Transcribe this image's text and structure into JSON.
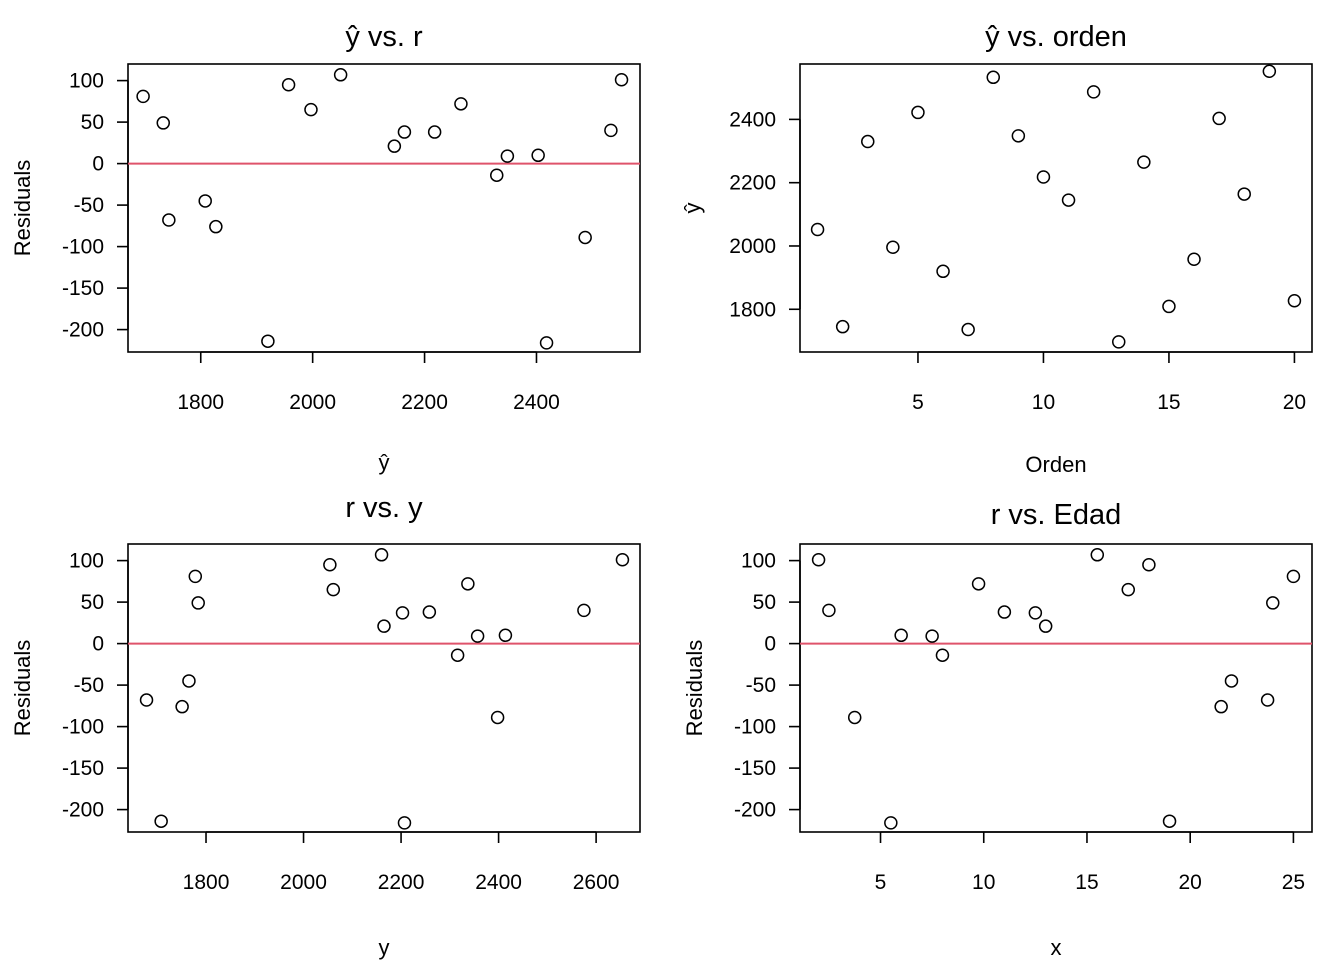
{
  "chart_data": [
    {
      "type": "scatter",
      "title": "ŷ vs. r",
      "xlabel": "ŷ",
      "ylabel": "Residuals",
      "xlim": [
        1670,
        2585
      ],
      "ylim": [
        -227,
        120
      ],
      "xticks": [
        1800,
        2000,
        2200,
        2400
      ],
      "yticks": [
        -200,
        -150,
        -100,
        -50,
        0,
        50,
        100
      ],
      "ref_line_y": 0,
      "x": [
        1697,
        1733,
        1743,
        1808,
        1827,
        1920,
        1957,
        1997,
        2050,
        2146,
        2164,
        2218,
        2265,
        2329,
        2348,
        2403,
        2418,
        2487,
        2533,
        2552
      ],
      "y": [
        81,
        49,
        -68,
        -45,
        -76,
        -214,
        95,
        65,
        107,
        21,
        38,
        38,
        72,
        -14,
        9,
        10,
        -216,
        -89,
        40,
        101
      ]
    },
    {
      "type": "scatter",
      "title": "ŷ vs. orden",
      "xlabel": "Orden",
      "ylabel": "ŷ",
      "xlim": [
        0.3,
        20.7
      ],
      "ylim": [
        1665,
        2575
      ],
      "xticks": [
        5,
        10,
        15,
        20
      ],
      "yticks": [
        1800,
        2000,
        2200,
        2400
      ],
      "x": [
        1,
        2,
        3,
        4,
        5,
        6,
        7,
        8,
        9,
        10,
        11,
        12,
        13,
        14,
        15,
        16,
        17,
        18,
        19,
        20
      ],
      "y": [
        2052,
        1745,
        2330,
        1996,
        2422,
        1920,
        1736,
        2533,
        2348,
        2218,
        2145,
        2487,
        1697,
        2265,
        1809,
        1958,
        2403,
        2164,
        2552,
        1827
      ]
    },
    {
      "type": "scatter",
      "title": "r vs. y",
      "xlabel": "y",
      "ylabel": "Residuals",
      "xlim": [
        1640,
        2690
      ],
      "ylim": [
        -227,
        120
      ],
      "xticks": [
        1800,
        2000,
        2200,
        2400,
        2600
      ],
      "yticks": [
        -200,
        -150,
        -100,
        -50,
        0,
        50,
        100
      ],
      "ref_line_y": 0,
      "x": [
        1678,
        1708,
        1751,
        1765,
        1778,
        1784,
        2054,
        2061,
        2160,
        2165,
        2203,
        2207,
        2258,
        2316,
        2337,
        2357,
        2398,
        2414,
        2575,
        2654
      ],
      "y": [
        -68,
        -214,
        -76,
        -45,
        81,
        49,
        95,
        65,
        107,
        21,
        37,
        -216,
        38,
        -14,
        72,
        9,
        -89,
        10,
        40,
        101
      ]
    },
    {
      "type": "scatter",
      "title": "r vs. Edad",
      "xlabel": "x",
      "ylabel": "Residuals",
      "xlim": [
        1.1,
        25.9
      ],
      "ylim": [
        -227,
        120
      ],
      "xticks": [
        5,
        10,
        15,
        20,
        25
      ],
      "yticks": [
        -200,
        -150,
        -100,
        -50,
        0,
        50,
        100
      ],
      "ref_line_y": 0,
      "x": [
        2.0,
        2.5,
        3.75,
        5.5,
        6.0,
        7.5,
        8.0,
        9.75,
        11.0,
        12.5,
        13.0,
        15.5,
        17.0,
        18.0,
        19.0,
        21.5,
        22.0,
        23.75,
        24.0,
        25.0
      ],
      "y": [
        101,
        40,
        -89,
        -216,
        10,
        9,
        -14,
        72,
        38,
        37,
        21,
        107,
        65,
        95,
        -214,
        -76,
        -45,
        -68,
        49,
        81
      ]
    }
  ]
}
